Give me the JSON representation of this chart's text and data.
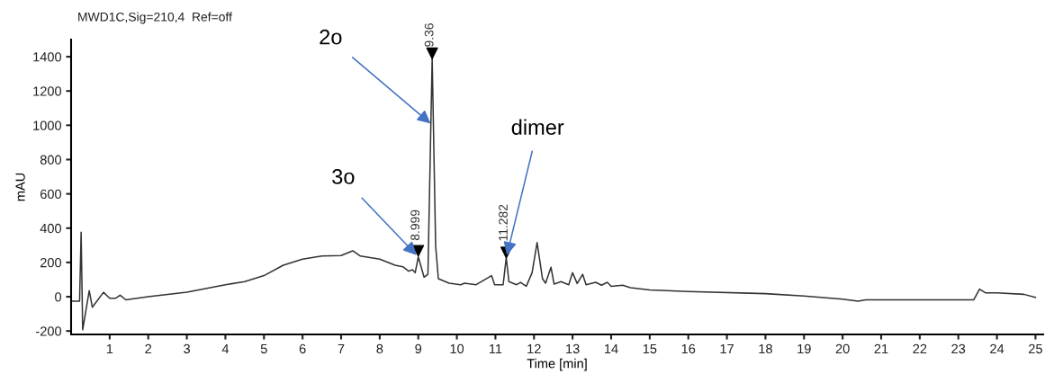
{
  "chart_data": {
    "type": "line",
    "title": "MWD1C,Sig=210,4  Ref=off",
    "xlabel": "Time [min]",
    "ylabel": "mAU",
    "xlim": [
      0,
      25.2
    ],
    "ylim": [
      -220,
      1500
    ],
    "xticks": [
      1,
      2,
      3,
      4,
      5,
      6,
      7,
      8,
      9,
      10,
      11,
      12,
      13,
      14,
      15,
      16,
      17,
      18,
      19,
      20,
      21,
      22,
      23,
      24,
      25
    ],
    "yticks": [
      -200,
      0,
      200,
      400,
      600,
      800,
      1000,
      1200,
      1400
    ],
    "grid": false,
    "legend": false,
    "series": [
      {
        "color": "#333333",
        "marker": "none",
        "x": [
          0.02,
          0.22,
          0.26,
          0.3,
          0.47,
          0.55,
          0.84,
          1.0,
          1.15,
          1.27,
          1.42,
          2,
          3,
          4,
          4.5,
          5,
          5.5,
          6,
          6.5,
          7,
          7.3,
          7.5,
          8.0,
          8.4,
          8.6,
          8.75,
          8.85,
          8.92,
          9.0,
          9.15,
          9.25,
          9.36,
          9.45,
          9.52,
          9.8,
          10.1,
          10.2,
          10.5,
          10.9,
          10.98,
          11.2,
          11.28,
          11.35,
          11.55,
          11.65,
          11.8,
          11.95,
          12.08,
          12.22,
          12.3,
          12.44,
          12.52,
          12.7,
          12.9,
          13.0,
          13.12,
          13.26,
          13.35,
          13.6,
          13.75,
          13.9,
          14.0,
          14.3,
          14.5,
          15,
          16,
          18,
          19,
          20,
          20.4,
          20.6,
          21,
          23.4,
          23.55,
          23.7,
          24,
          24.7,
          25
        ],
        "values": [
          -26,
          -26,
          377,
          -193,
          35,
          -61,
          26,
          -9,
          -9,
          9,
          -18,
          0,
          26,
          70,
          88,
          123,
          184,
          219,
          237,
          240,
          268,
          237,
          219,
          184,
          175,
          149,
          158,
          140,
          232,
          114,
          131,
          1390,
          298,
          105,
          79,
          70,
          79,
          70,
          123,
          70,
          70,
          228,
          88,
          70,
          84,
          61,
          140,
          316,
          105,
          79,
          172,
          74,
          88,
          70,
          140,
          77,
          131,
          70,
          84,
          67,
          84,
          61,
          67,
          53,
          39,
          30,
          18,
          4,
          -14,
          -26,
          -18,
          -18,
          -18,
          44,
          23,
          23,
          14,
          -4
        ]
      },
      {
        "type": "scatter",
        "color": "#000000",
        "marker": "triangle",
        "x": [
          8.999,
          9.36,
          11.282
        ],
        "values": [
          268,
          1420,
          258
        ]
      }
    ],
    "annotations": [
      {
        "text": "2o",
        "x": 9.32,
        "y": 1010
      },
      {
        "text": "3o",
        "x": 8.999,
        "y": 232
      },
      {
        "text": "dimer",
        "x": 11.282,
        "y": 228
      },
      {
        "text": "8.999",
        "x": 8.999,
        "y": 232
      },
      {
        "text": "9.36",
        "x": 9.36,
        "y": 1390
      },
      {
        "text": "11.282",
        "x": 11.282,
        "y": 228
      }
    ]
  }
}
